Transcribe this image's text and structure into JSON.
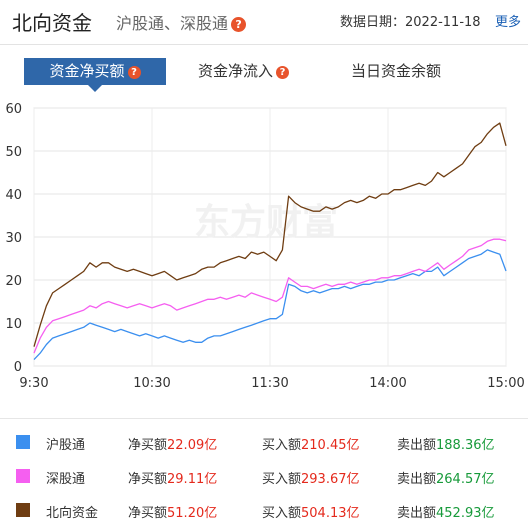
{
  "header": {
    "title": "北向资金",
    "subtitle": "沪股通、深股通",
    "help_icon": "?",
    "date_label": "数据日期：2022-11-18",
    "more_link": "更多"
  },
  "tabs": [
    {
      "label": "资金净买额",
      "active": true,
      "has_help": true
    },
    {
      "label": "资金净流入",
      "active": false,
      "has_help": true
    },
    {
      "label": "当日资金余额",
      "active": false,
      "has_help": false
    }
  ],
  "watermark": "东方财富",
  "chart_data": {
    "type": "line",
    "x_ticks": [
      "9:30",
      "10:30",
      "11:30",
      "14:00",
      "15:00"
    ],
    "ylim": [
      0,
      60
    ],
    "y_ticks": [
      0,
      10,
      20,
      30,
      40,
      50,
      60
    ],
    "grid": true,
    "series": [
      {
        "name": "沪股通",
        "color": "#3b8fef",
        "values": [
          1.5,
          3,
          5,
          6.5,
          7,
          7.5,
          8,
          8.5,
          9,
          10,
          9.5,
          9,
          8.5,
          8,
          8.5,
          8,
          7.5,
          7,
          7.5,
          7,
          6.5,
          7,
          6.5,
          6,
          5.5,
          6,
          5.5,
          5.5,
          6.5,
          7,
          7,
          7.5,
          8,
          8.5,
          9,
          9.5,
          10,
          10.5,
          11,
          11,
          12,
          19,
          18.5,
          17.5,
          17,
          17.5,
          17,
          17.5,
          18,
          18,
          18.5,
          18,
          18.5,
          19,
          19,
          19.5,
          19.5,
          20,
          20,
          20.5,
          21,
          21.5,
          21,
          22,
          22,
          23,
          21,
          22,
          23,
          24,
          25,
          25.5,
          26,
          27,
          26.5,
          26,
          22.09
        ]
      },
      {
        "name": "深股通",
        "color": "#f55ff0",
        "values": [
          3,
          6.5,
          9,
          10.5,
          11,
          11.5,
          12,
          12.5,
          13,
          14,
          13.5,
          14.5,
          15,
          14.5,
          14,
          13.5,
          14,
          14.5,
          14,
          13.5,
          14,
          14.5,
          14,
          13,
          13.5,
          14,
          14.5,
          15,
          15.5,
          15.5,
          16,
          15.5,
          16,
          16.5,
          16,
          17,
          16.5,
          16,
          15.5,
          15,
          16,
          20.5,
          19.5,
          18.5,
          18.5,
          18,
          18.5,
          19,
          18.5,
          19,
          19,
          19.5,
          19,
          19.5,
          20,
          20,
          20.5,
          20.5,
          21,
          21,
          21.5,
          22,
          22.5,
          22,
          23,
          24,
          22.5,
          23.5,
          24.5,
          25.5,
          27,
          27.5,
          28,
          29,
          29.5,
          29.5,
          29.11
        ]
      },
      {
        "name": "北向资金",
        "color": "#6f3d12",
        "values": [
          4.5,
          9.5,
          14,
          17,
          18,
          19,
          20,
          21,
          22,
          24,
          23,
          24,
          24,
          23,
          22.5,
          22,
          22.5,
          22,
          21.5,
          21,
          21.5,
          22,
          21,
          20,
          20.5,
          21,
          21.5,
          22.5,
          23,
          23,
          24,
          24.5,
          25,
          25.5,
          25,
          26.5,
          26,
          26.5,
          25.5,
          24.5,
          27,
          39.5,
          38,
          37,
          36.5,
          36,
          36,
          37,
          36.5,
          37,
          38,
          38.5,
          38,
          38.5,
          39.5,
          39,
          40,
          40,
          41,
          41,
          41.5,
          42,
          42.5,
          42,
          43,
          45,
          44,
          45,
          46,
          47,
          49,
          51,
          52,
          54,
          55.5,
          56.5,
          51.2
        ]
      }
    ]
  },
  "legend": [
    {
      "name": "沪股通",
      "color": "#3b8fef",
      "net_label": "净买额",
      "net_value": "22.09亿",
      "buy_label": "买入额",
      "buy_value": "210.45亿",
      "sell_label": "卖出额",
      "sell_value": "188.36亿"
    },
    {
      "name": "深股通",
      "color": "#f55ff0",
      "net_label": "净买额",
      "net_value": "29.11亿",
      "buy_label": "买入额",
      "buy_value": "293.67亿",
      "sell_label": "卖出额",
      "sell_value": "264.57亿"
    },
    {
      "name": "北向资金",
      "color": "#6f3d12",
      "net_label": "净买额",
      "net_value": "51.20亿",
      "buy_label": "买入额",
      "buy_value": "504.13亿",
      "sell_label": "卖出额",
      "sell_value": "452.93亿"
    }
  ]
}
